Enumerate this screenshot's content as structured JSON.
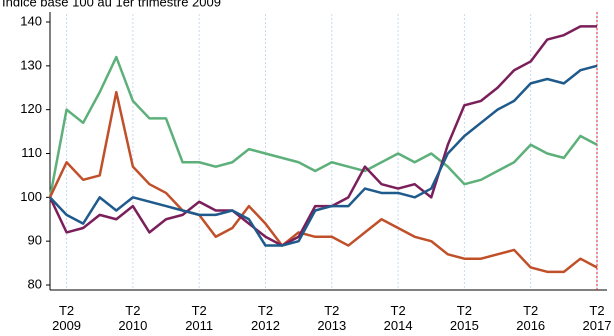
{
  "chart_data": {
    "type": "line",
    "title": "Indice base 100 au 1er trimestre 2009",
    "categories": [
      null,
      "T2 2009",
      null,
      null,
      null,
      "T2 2010",
      null,
      null,
      null,
      "T2 2011",
      null,
      null,
      null,
      "T2 2012",
      null,
      null,
      null,
      "T2 2013",
      null,
      null,
      null,
      "T2 2014",
      null,
      null,
      null,
      "T2 2015",
      null,
      null,
      null,
      "T2 2016",
      null,
      null,
      null,
      "T2 2017"
    ],
    "series": [
      {
        "color": "#5db07a",
        "values": [
          100,
          120,
          117,
          124,
          132,
          122,
          118,
          118,
          108,
          108,
          107,
          108,
          111,
          110,
          109,
          108,
          106,
          108,
          107,
          106,
          108,
          110,
          108,
          110,
          107,
          103,
          104,
          106,
          108,
          112,
          110,
          109,
          114,
          112
        ]
      },
      {
        "color": "#c0502a",
        "values": [
          100,
          108,
          104,
          105,
          124,
          107,
          103,
          101,
          97,
          96,
          91,
          93,
          98,
          94,
          89,
          92,
          91,
          91,
          89,
          92,
          95,
          93,
          91,
          90,
          87,
          86,
          86,
          87,
          88,
          84,
          83,
          83,
          86,
          84
        ]
      },
      {
        "color": "#7b1f5a",
        "values": [
          100,
          92,
          93,
          96,
          95,
          98,
          92,
          95,
          96,
          99,
          97,
          97,
          94,
          91,
          89,
          91,
          98,
          98,
          100,
          107,
          103,
          102,
          103,
          100,
          112,
          121,
          122,
          125,
          129,
          131,
          136,
          137,
          139,
          139
        ]
      },
      {
        "color": "#1f5a8c",
        "values": [
          100,
          96,
          94,
          100,
          97,
          100,
          99,
          98,
          97,
          96,
          96,
          97,
          95,
          89,
          89,
          90,
          97,
          98,
          98,
          102,
          101,
          101,
          100,
          102,
          110,
          114,
          117,
          120,
          122,
          126,
          127,
          126,
          129,
          130
        ]
      }
    ],
    "ylim": [
      80,
      140
    ],
    "yticks": [
      80,
      90,
      100,
      110,
      120,
      130,
      140
    ],
    "grid": true
  }
}
